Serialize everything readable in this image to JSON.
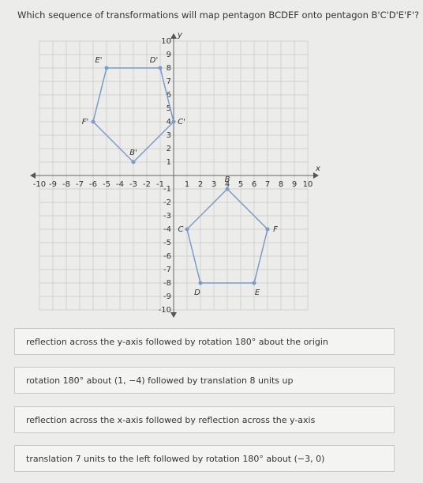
{
  "question": "Which sequence of transformations will map pentagon BCDEF onto pentagon B'C'D'E'F'?",
  "graph": {
    "x_label": "x",
    "y_label": "y",
    "xlim": [
      -10,
      10
    ],
    "ylim": [
      -10,
      10
    ],
    "xticks": [
      -10,
      -9,
      -8,
      -7,
      -6,
      -5,
      -4,
      -3,
      -2,
      -1,
      1,
      2,
      3,
      4,
      5,
      6,
      7,
      8,
      9,
      10
    ],
    "yticks": [
      -10,
      -9,
      -8,
      -7,
      -6,
      -5,
      -4,
      -3,
      -2,
      -1,
      1,
      2,
      3,
      4,
      5,
      6,
      7,
      8,
      9,
      10
    ],
    "polygons": [
      {
        "color": "#7a9cc6",
        "points": [
          {
            "label": "B",
            "x": 4,
            "y": -1
          },
          {
            "label": "C",
            "x": 1,
            "y": -4
          },
          {
            "label": "D",
            "x": 2,
            "y": -8
          },
          {
            "label": "E",
            "x": 6,
            "y": -8
          },
          {
            "label": "F",
            "x": 7,
            "y": -4
          }
        ]
      },
      {
        "color": "#7a9cc6",
        "points": [
          {
            "label": "B'",
            "x": -3,
            "y": 1
          },
          {
            "label": "C'",
            "x": 0,
            "y": 4
          },
          {
            "label": "D'",
            "x": -1,
            "y": 8
          },
          {
            "label": "E'",
            "x": -5,
            "y": 8
          },
          {
            "label": "F'",
            "x": -6,
            "y": 4
          }
        ]
      }
    ]
  },
  "options": [
    "reflection across the y-axis followed by rotation 180° about the origin",
    "rotation 180° about (1, −4) followed by translation 8 units up",
    "reflection across the x-axis followed by reflection across the y-axis",
    "translation 7 units to the left followed by rotation 180° about (−3, 0)"
  ]
}
